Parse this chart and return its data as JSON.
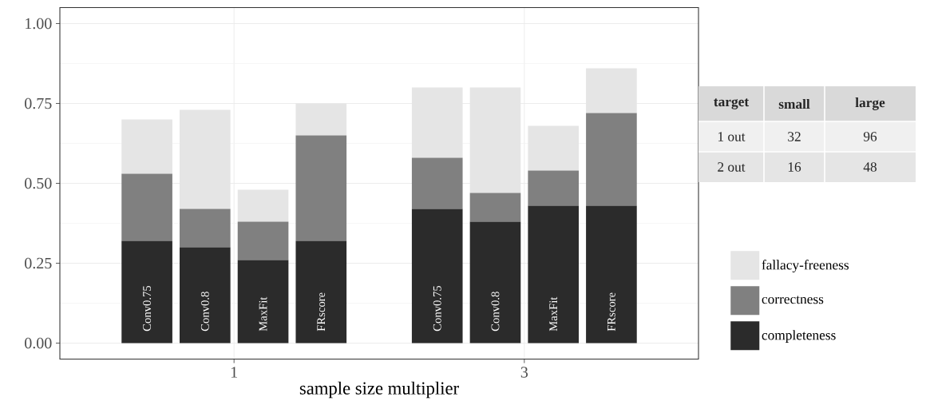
{
  "chart_data": [
    {
      "type": "bar",
      "stacked": true,
      "xlabel": "sample size multiplier",
      "x": [
        0.4,
        0.8,
        1.2,
        1.6,
        2.4,
        2.8,
        3.2,
        3.6
      ],
      "xlim": [
        -0.2,
        4.2
      ],
      "xticks": [
        1,
        3
      ],
      "ylim": [
        -0.05,
        1.05
      ],
      "yticks": [
        {
          "value": 0,
          "label": "0.00"
        },
        {
          "value": 0.25,
          "label": "0.25"
        },
        {
          "value": 0.5,
          "label": "0.50"
        },
        {
          "value": 0.75,
          "label": "0.75"
        },
        {
          "value": 1,
          "label": "1.00"
        }
      ],
      "grid": true,
      "legend": "right",
      "series": [
        {
          "name": "completeness",
          "color": "#2b2b2b",
          "values": [
            0.32,
            0.3,
            0.26,
            0.32,
            0.42,
            0.38,
            0.43,
            0.43
          ]
        },
        {
          "name": "correctness",
          "color": "#808080",
          "values": [
            0.21,
            0.12,
            0.12,
            0.33,
            0.16,
            0.09,
            0.11,
            0.29
          ]
        },
        {
          "name": "fallacy-freeness",
          "color": "#e5e5e5",
          "values": [
            0.17,
            0.31,
            0.1,
            0.1,
            0.22,
            0.33,
            0.14,
            0.14
          ]
        }
      ],
      "annotations": [
        "Conv0.75",
        "Conv0.8",
        "MaxFit",
        "FRscore",
        "Conv0.75",
        "Conv0.8",
        "MaxFit",
        "FRscore"
      ]
    },
    {
      "type": "other",
      "annotations": [
        "target",
        "small",
        "large",
        "1 out",
        "32",
        "96",
        "2 out",
        "16",
        "48"
      ]
    }
  ]
}
